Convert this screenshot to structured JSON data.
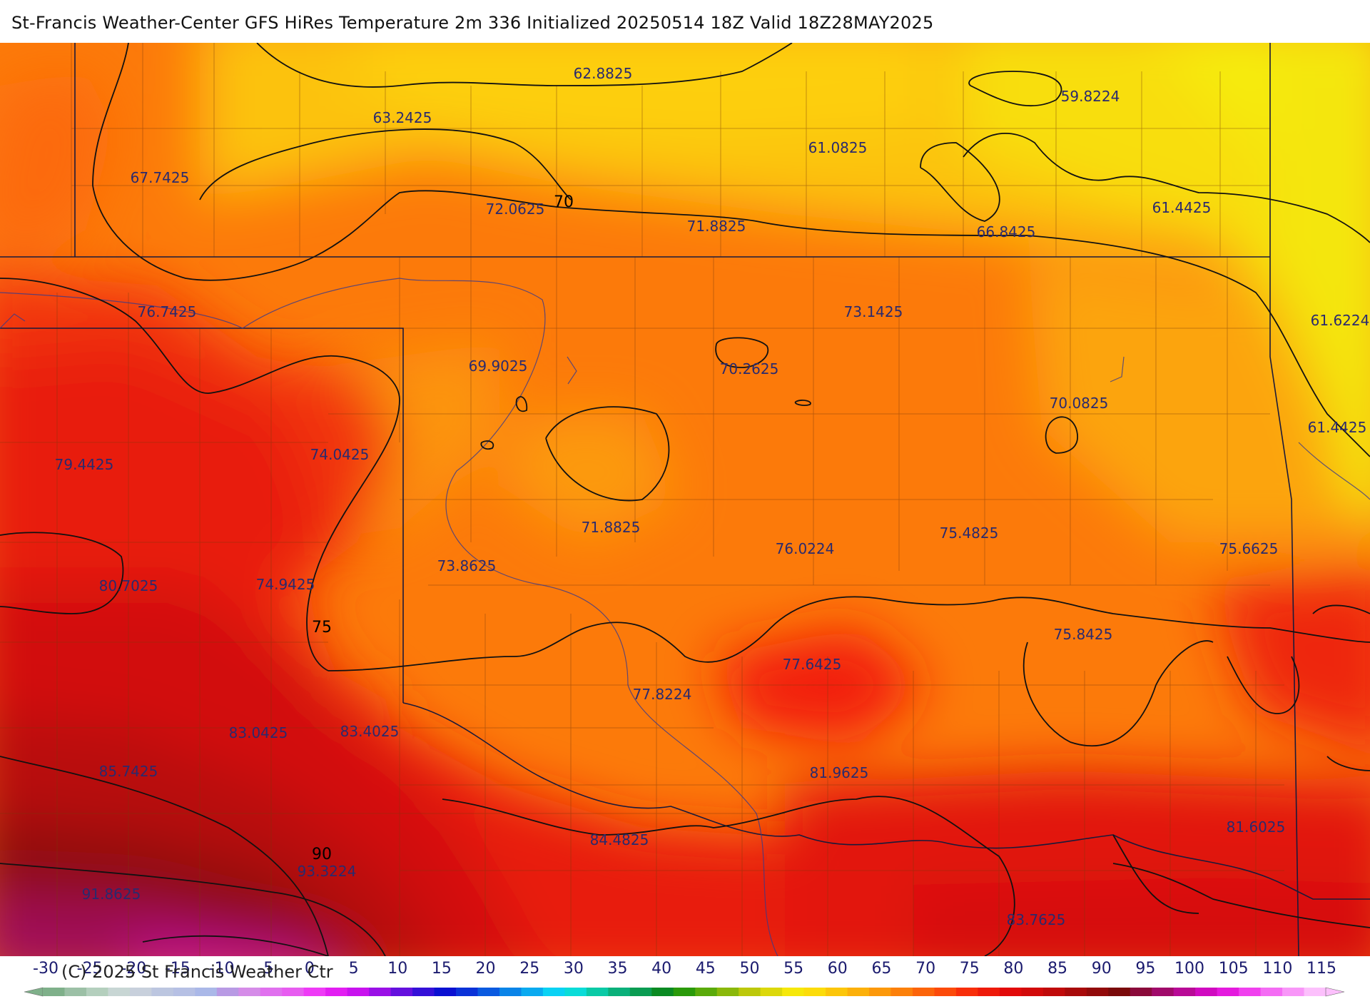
{
  "title": "St-Francis Weather-Center GFS HiRes Temperature 2m  336 Initialized 20250514 18Z Valid 18Z28MAY2025",
  "copyright": "(C) 2025 St Francis Weather Ctr",
  "map": {
    "value_labels": [
      "62.8825",
      "59.8224",
      "63.2425",
      "61.0825",
      "67.7425",
      "72.0625",
      "61.4425",
      "71.8825",
      "66.8425",
      "76.7425",
      "73.1425",
      "61.6224",
      "69.9025",
      "70.2625",
      "70.0825",
      "61.4425",
      "79.4425",
      "74.0425",
      "71.8825",
      "75.4825",
      "76.0224",
      "75.6625",
      "73.8625",
      "80.7025",
      "74.9425",
      "75.8425",
      "77.6425",
      "77.8224",
      "83.0425",
      "83.4025",
      "85.7425",
      "81.9625",
      "84.4825",
      "81.6025",
      "93.3224",
      "91.8625",
      "83.7625"
    ],
    "contour_labels": [
      "70",
      "75",
      "90"
    ]
  },
  "legend": {
    "ticks": [
      "-30",
      "-25",
      "-20",
      "-15",
      "-10",
      "-5",
      "0",
      "5",
      "10",
      "15",
      "20",
      "25",
      "30",
      "35",
      "40",
      "45",
      "50",
      "55",
      "60",
      "65",
      "70",
      "75",
      "80",
      "85",
      "90",
      "95",
      "100",
      "105",
      "110",
      "115"
    ],
    "colors": [
      "#7fb08a",
      "#9cc0a6",
      "#b4cfbd",
      "#c8d6d4",
      "#c8d0dc",
      "#bcc6e0",
      "#b6c0e4",
      "#aab8e8",
      "#b89ae4",
      "#d58ce8",
      "#e070ee",
      "#e75cf0",
      "#ee3af6",
      "#e21ef2",
      "#c812ee",
      "#9a10e6",
      "#6410de",
      "#3410d8",
      "#0a10d2",
      "#0a32d8",
      "#0a5ae0",
      "#0a84e8",
      "#0aaaf0",
      "#0ad2f4",
      "#0adcd8",
      "#0acaa6",
      "#0ab07a",
      "#0a9c52",
      "#0a8a22",
      "#2a9a0a",
      "#5aaa0a",
      "#8ab80a",
      "#bcc80a",
      "#dcd80a",
      "#f6e80a",
      "#fcdc0a",
      "#fcc60a",
      "#fcb00a",
      "#fc980a",
      "#fc800a",
      "#fc640a",
      "#fc4a0a",
      "#f82e0a",
      "#ee1a0a",
      "#e20a0a",
      "#d20a0a",
      "#c00a0a",
      "#a80a0a",
      "#920a0a",
      "#7a0a0a",
      "#8a0a3a",
      "#a00a6a",
      "#b80a96",
      "#d00ac0",
      "#e41ade",
      "#f040ee",
      "#f46cf4",
      "#f896f8",
      "#fcc0fc"
    ]
  }
}
